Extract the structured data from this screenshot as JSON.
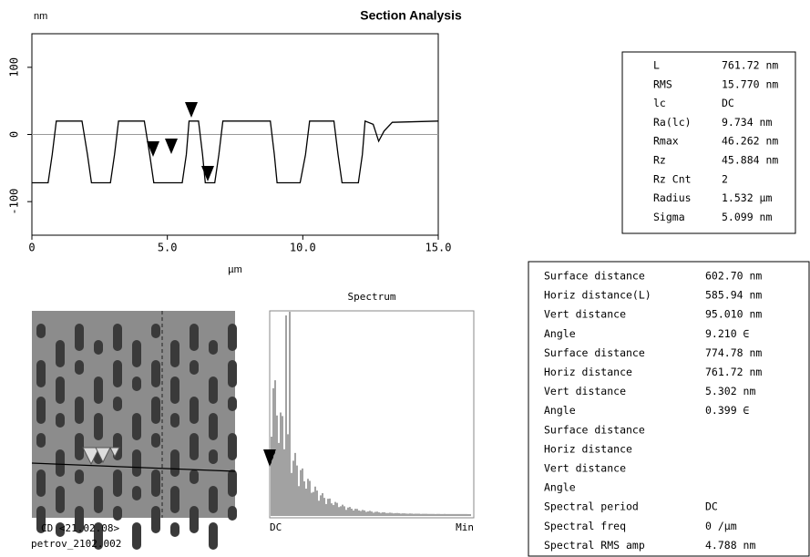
{
  "profile": {
    "title": "Section Analysis",
    "y_unit": "nm",
    "x_unit": "µm",
    "xlim": [
      0,
      15
    ],
    "ylim": [
      -150,
      150
    ],
    "xticks": [
      0,
      {
        "value": 5,
        "label": "5.0"
      },
      {
        "value": 10,
        "label": "10.0"
      },
      {
        "value": 15,
        "label": "15.0"
      }
    ],
    "yticks": [
      -100,
      0,
      100
    ],
    "x": [
      0,
      0.6,
      0.75,
      0.9,
      1.85,
      2.05,
      2.2,
      2.9,
      3.05,
      3.2,
      4.15,
      4.35,
      4.5,
      5.55,
      5.7,
      5.8,
      6.15,
      6.3,
      6.4,
      6.75,
      6.9,
      7.05,
      8.8,
      8.95,
      9.05,
      9.9,
      10.1,
      10.25,
      11.15,
      11.3,
      11.45,
      12.05,
      12.2,
      12.3,
      12.6,
      12.8,
      13.0,
      13.3,
      15
    ],
    "y": [
      -72,
      -72,
      -30,
      20,
      20,
      -30,
      -72,
      -72,
      -30,
      20,
      20,
      -30,
      -72,
      -72,
      -30,
      20,
      20,
      -30,
      -72,
      -72,
      -30,
      20,
      20,
      -30,
      -72,
      -72,
      -30,
      20,
      20,
      -30,
      -72,
      -72,
      -30,
      20,
      15,
      -10,
      5,
      18,
      20
    ]
  },
  "stats": [
    [
      "L",
      "761.72 nm"
    ],
    [
      "RMS",
      "15.770 nm"
    ],
    [
      "lc",
      "DC"
    ],
    [
      "Ra(lc)",
      "9.734 nm"
    ],
    [
      "Rmax",
      "46.262 nm"
    ],
    [
      "Rz",
      "45.884 nm"
    ],
    [
      "Rz Cnt",
      "2"
    ],
    [
      "Radius",
      "1.532 µm"
    ],
    [
      "Sigma",
      "5.099 nm"
    ]
  ],
  "measurements": [
    [
      "Surface distance",
      "602.70 nm"
    ],
    [
      "Horiz distance(L)",
      "585.94 nm"
    ],
    [
      "Vert distance",
      "95.010 nm"
    ],
    [
      "Angle",
      "9.210 ∈"
    ],
    [
      "Surface distance",
      "774.78 nm"
    ],
    [
      "Horiz distance",
      "761.72 nm"
    ],
    [
      "Vert distance",
      "5.302 nm"
    ],
    [
      "Angle",
      "0.399 ∈"
    ],
    [
      "Surface distance",
      ""
    ],
    [
      "Horiz distance",
      ""
    ],
    [
      "Vert distance",
      ""
    ],
    [
      "Angle",
      ""
    ],
    [
      "Spectral period",
      "DC"
    ],
    [
      "Spectral freq",
      "0 /µm"
    ],
    [
      "Spectral RMS amp",
      "4.788 nm"
    ]
  ],
  "image_caption": [
    "CD <21.02.08>",
    "petrov_2102.002"
  ],
  "spectrum": {
    "title": "Spectrum",
    "left_label": "DC",
    "right_label": "Min"
  }
}
